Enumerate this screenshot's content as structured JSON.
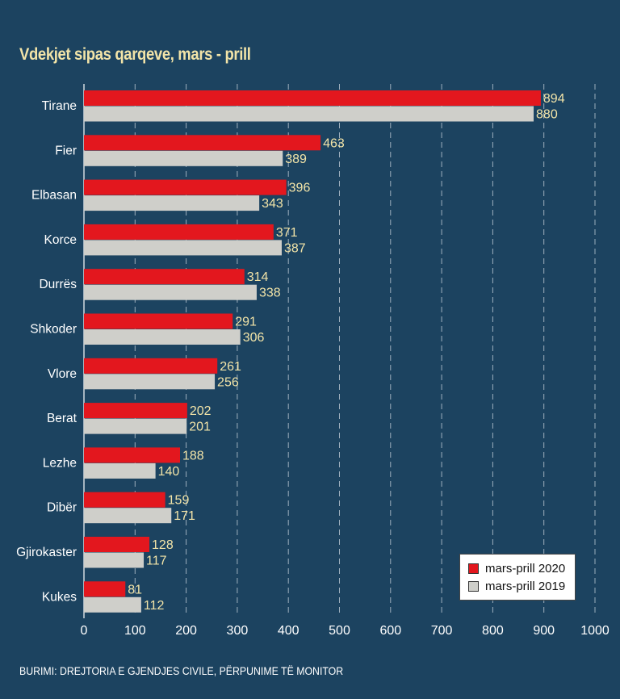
{
  "title": "Vdekjet sipas qarqeve, mars - prill",
  "source": "BURIMI: DREJTORIA E GJENDJES CIVILE, PËRPUNIME TË MONITOR",
  "colors": {
    "background": "#1c4360",
    "series_2020": "#e3171e",
    "series_2019": "#cfcfca",
    "value_labels": "#f2e4a8",
    "tick_labels": "#ffffff",
    "title": "#f2e4a8"
  },
  "chart_data": {
    "type": "bar",
    "orientation": "horizontal",
    "title": "Vdekjet sipas qarqeve, mars - prill",
    "categories": [
      "Tirane",
      "Fier",
      "Elbasan",
      "Korce",
      "Durrës",
      "Shkoder",
      "Vlore",
      "Berat",
      "Lezhe",
      "Dibër",
      "Gjirokaster",
      "Kukes"
    ],
    "series": [
      {
        "name": "mars-prill 2020",
        "color": "#e3171e",
        "values": [
          894,
          463,
          396,
          371,
          314,
          291,
          261,
          202,
          188,
          159,
          128,
          81
        ]
      },
      {
        "name": "mars-prill 2019",
        "color": "#cfcfca",
        "values": [
          880,
          389,
          343,
          387,
          338,
          306,
          256,
          201,
          140,
          171,
          117,
          112
        ]
      }
    ],
    "xlim": [
      0,
      1000
    ],
    "xticks": [
      0,
      100,
      200,
      300,
      400,
      500,
      600,
      700,
      800,
      900,
      1000
    ],
    "grid": "vertical dashed",
    "legend": "bottom-right",
    "xlabel": "",
    "ylabel": ""
  }
}
